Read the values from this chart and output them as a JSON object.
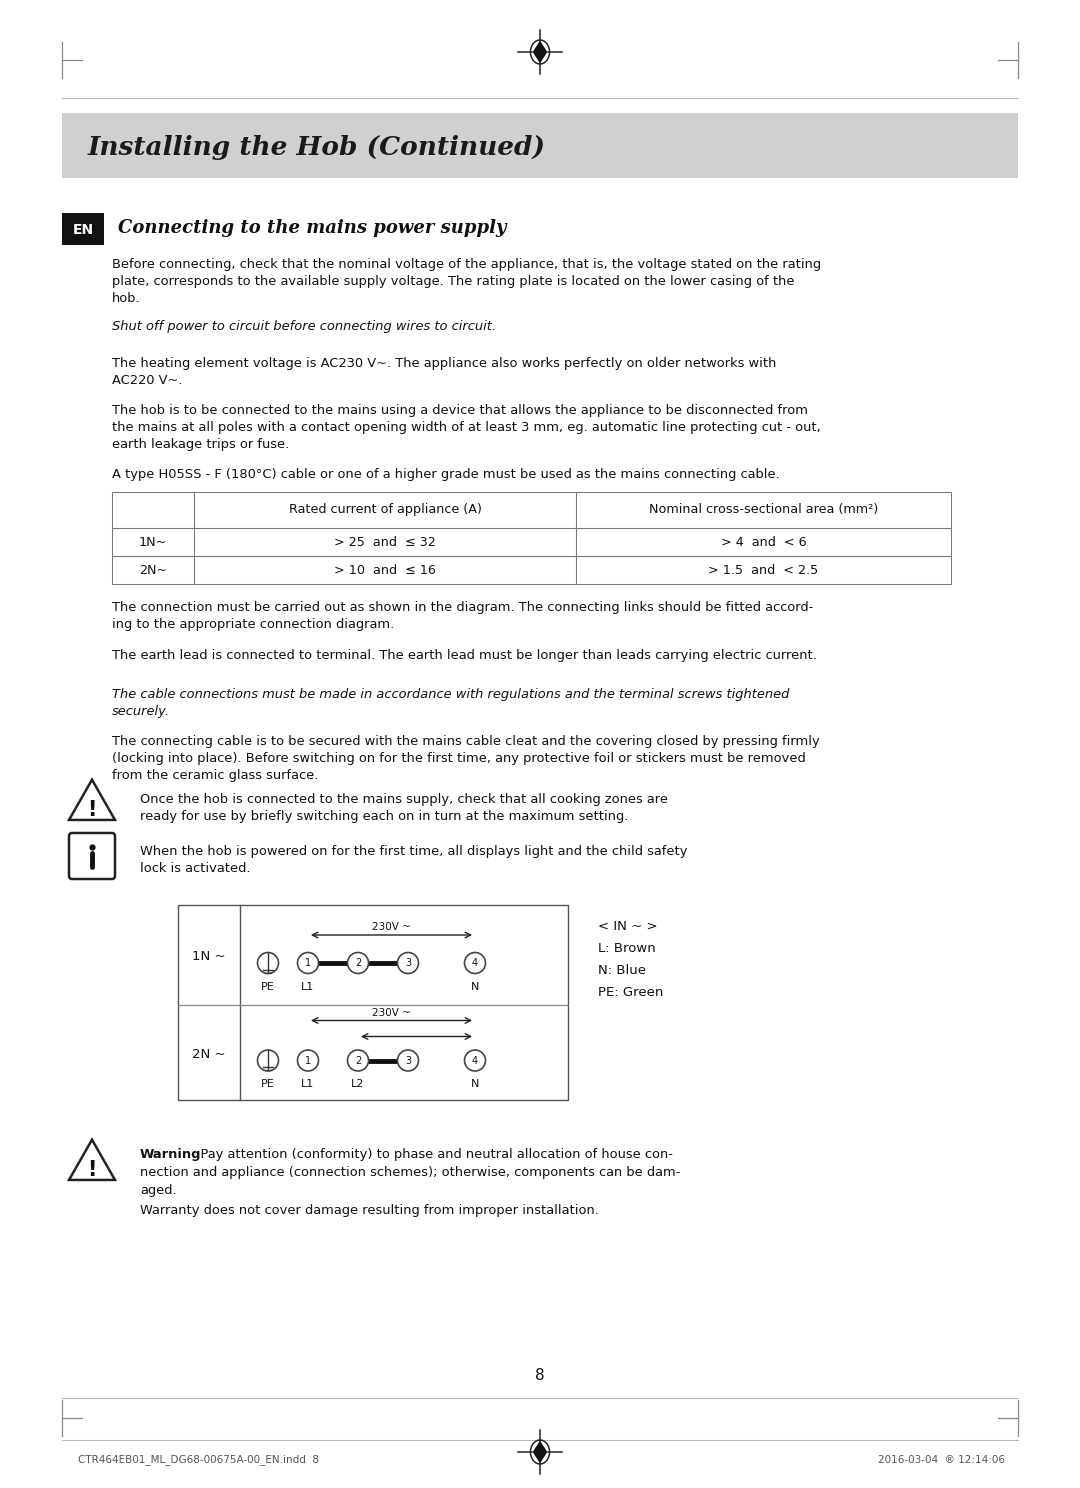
{
  "page_width": 10.8,
  "page_height": 14.88,
  "bg_color": "#ffffff",
  "header_bg": "#d0d0d0",
  "header_title": "Installing the Hob (Continued)",
  "section_title": "Connecting to the mains power supply",
  "en_label": "EN",
  "para1": "Before connecting, check that the nominal voltage of the appliance, that is, the voltage stated on the rating\nplate, corresponds to the available supply voltage. The rating plate is located on the lower casing of the\nhob.",
  "para_italic1": "Shut off power to circuit before connecting wires to circuit.",
  "para2": "The heating element voltage is AC230 V~. The appliance also works perfectly on older networks with\nAC220 V~.",
  "para3": "The hob is to be connected to the mains using a device that allows the appliance to be disconnected from\nthe mains at all poles with a contact opening width of at least 3 mm, eg. automatic line protecting cut - out,\nearth leakage trips or fuse.",
  "para4": "A type H05SS - F (180°C) cable or one of a higher grade must be used as the mains connecting cable.",
  "table_rows": [
    [
      "",
      "Rated current of appliance (A)",
      "Nominal cross-sectional area (mm²)"
    ],
    [
      "1N~",
      "> 25  and  ≤ 32",
      "> 4  and  < 6"
    ],
    [
      "2N~",
      "> 10  and  ≤ 16",
      "> 1.5  and  < 2.5"
    ]
  ],
  "para5": "The connection must be carried out as shown in the diagram. The connecting links should be fitted accord-\ning to the appropriate connection diagram.",
  "para6": "The earth lead is connected to terminal. The earth lead must be longer than leads carrying electric current.",
  "para_italic2": "The cable connections must be made in accordance with regulations and the terminal screws tightened\nsecurely.",
  "para7": "The connecting cable is to be secured with the mains cable cleat and the covering closed by pressing firmly\n(locking into place). Before switching on for the first time, any protective foil or stickers must be removed\nfrom the ceramic glass surface.",
  "warn1": "Once the hob is connected to the mains supply, check that all cooking zones are\nready for use by briefly switching each on in turn at the maximum setting.",
  "info1": "When the hob is powered on for the first time, all displays light and the child safety\nlock is activated.",
  "legend_line1": "< IN ~ >",
  "legend_line2": "L: Brown",
  "legend_line3": "N: Blue",
  "legend_line4": "PE: Green",
  "diagram_voltage": "230V ~",
  "warn2_bold": "Warning",
  "warn2_rest1": ": Pay attention (conformity) to phase and neutral allocation of house con-",
  "warn2_rest2": "nection and appliance (connection schemes); otherwise, components can be dam-",
  "warn2_rest3": "aged.",
  "warn2_last": "Warranty does not cover damage resulting from improper installation.",
  "page_number": "8",
  "footer_left": "CTR464EB01_ML_DG68-00675A-00_EN.indd  8",
  "footer_right": "2016-03-04  ® 12:14:06",
  "text_color": "#111111",
  "table_border": "#777777",
  "header_text_color": "#1a1a1a"
}
